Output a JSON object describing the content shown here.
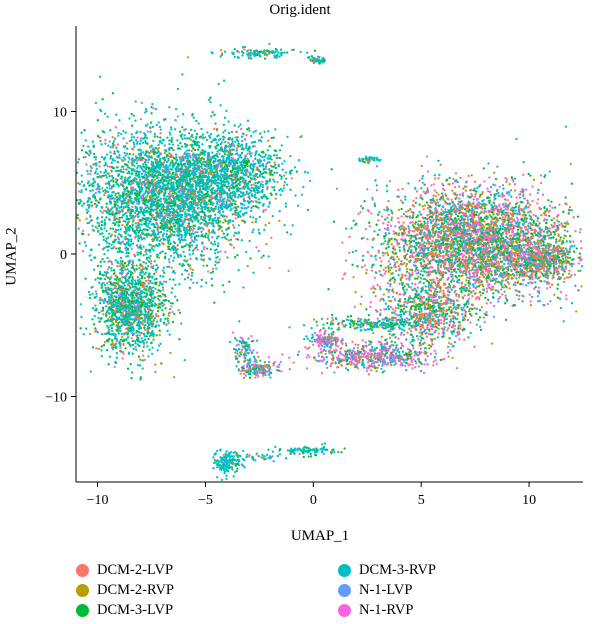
{
  "chart_data": {
    "type": "scatter",
    "title": "Orig.ident",
    "xlabel": "UMAP_1",
    "ylabel": "UMAP_2",
    "xlim": [
      -11,
      12.5
    ],
    "ylim": [
      -16,
      16
    ],
    "x_ticks": [
      -10,
      -5,
      0,
      5,
      10
    ],
    "x_tick_labels": [
      "−10",
      "−5",
      "0",
      "5",
      "10"
    ],
    "y_ticks": [
      -10,
      0,
      10
    ],
    "y_tick_labels": [
      "−10",
      "0",
      "10"
    ],
    "grid": false,
    "legend_position": "bottom",
    "series": [
      {
        "name": "DCM-2-LVP",
        "color": "#F8766D"
      },
      {
        "name": "DCM-2-RVP",
        "color": "#B79F00"
      },
      {
        "name": "DCM-3-LVP",
        "color": "#00BA38"
      },
      {
        "name": "DCM-3-RVP",
        "color": "#00BFC4"
      },
      {
        "name": "N-1-LVP",
        "color": "#619CFF"
      },
      {
        "name": "N-1-RVP",
        "color": "#F564E3"
      }
    ],
    "clusters": [
      {
        "cx": -6.8,
        "cy": 4.0,
        "sx": 2.0,
        "sy": 2.4,
        "n": 3600,
        "weights": [
          0.08,
          0.06,
          0.18,
          0.62,
          0.03,
          0.03
        ]
      },
      {
        "cx": -8.5,
        "cy": -3.8,
        "sx": 0.8,
        "sy": 1.6,
        "n": 1300,
        "weights": [
          0.06,
          0.12,
          0.22,
          0.55,
          0.02,
          0.03
        ]
      },
      {
        "cx": -3.8,
        "cy": 5.8,
        "sx": 1.3,
        "sy": 1.2,
        "n": 900,
        "weights": [
          0.05,
          0.05,
          0.15,
          0.7,
          0.02,
          0.03
        ]
      },
      {
        "cx": 7.5,
        "cy": 0.8,
        "sx": 2.2,
        "sy": 1.9,
        "n": 3800,
        "weights": [
          0.2,
          0.15,
          0.2,
          0.2,
          0.08,
          0.17
        ]
      },
      {
        "cx": 10.6,
        "cy": -0.4,
        "sx": 0.7,
        "sy": 0.6,
        "n": 500,
        "weights": [
          0.2,
          0.15,
          0.2,
          0.2,
          0.08,
          0.17
        ]
      },
      {
        "cx": 5.3,
        "cy": -4.0,
        "sx": 1.1,
        "sy": 1.1,
        "n": 700,
        "weights": [
          0.18,
          0.14,
          0.2,
          0.28,
          0.06,
          0.14
        ]
      },
      {
        "cx": 2.8,
        "cy": -7.2,
        "sx": 1.4,
        "sy": 0.45,
        "n": 550,
        "weights": [
          0.1,
          0.08,
          0.12,
          0.18,
          0.12,
          0.4
        ]
      },
      {
        "cx": 0.6,
        "cy": -6.0,
        "sx": 0.4,
        "sy": 0.25,
        "n": 130,
        "weights": [
          0.1,
          0.05,
          0.1,
          0.15,
          0.15,
          0.45
        ]
      },
      {
        "cx": 2.8,
        "cy": -4.9,
        "sx": 1.3,
        "sy": 0.22,
        "n": 220,
        "weights": [
          0.08,
          0.05,
          0.2,
          0.6,
          0.02,
          0.05
        ]
      },
      {
        "cx": -2.5,
        "cy": -8.1,
        "sx": 0.45,
        "sy": 0.3,
        "n": 160,
        "weights": [
          0.12,
          0.08,
          0.15,
          0.25,
          0.1,
          0.3
        ]
      },
      {
        "cx": -3.2,
        "cy": -6.8,
        "sx": 0.25,
        "sy": 0.6,
        "n": 90,
        "weights": [
          0.12,
          0.08,
          0.15,
          0.35,
          0.1,
          0.2
        ]
      },
      {
        "cx": -4.0,
        "cy": -14.6,
        "sx": 0.3,
        "sy": 0.45,
        "n": 150,
        "weights": [
          0.03,
          0.02,
          0.1,
          0.83,
          0.01,
          0.01
        ]
      },
      {
        "cx": -2.4,
        "cy": -14.3,
        "sx": 0.6,
        "sy": 0.12,
        "n": 35,
        "weights": [
          0.03,
          0.02,
          0.1,
          0.83,
          0.01,
          0.01
        ]
      },
      {
        "cx": -0.3,
        "cy": -13.8,
        "sx": 0.7,
        "sy": 0.15,
        "n": 90,
        "weights": [
          0.03,
          0.02,
          0.1,
          0.83,
          0.01,
          0.01
        ]
      },
      {
        "cx": -2.4,
        "cy": 14.1,
        "sx": 1.0,
        "sy": 0.18,
        "n": 110,
        "weights": [
          0.05,
          0.05,
          0.2,
          0.65,
          0.02,
          0.03
        ]
      },
      {
        "cx": 0.2,
        "cy": 13.6,
        "sx": 0.2,
        "sy": 0.12,
        "n": 45,
        "weights": [
          0.05,
          0.05,
          0.2,
          0.65,
          0.02,
          0.03
        ]
      },
      {
        "cx": 2.5,
        "cy": 6.6,
        "sx": 0.3,
        "sy": 0.1,
        "n": 40,
        "weights": [
          0.05,
          0.05,
          0.2,
          0.6,
          0.05,
          0.05
        ]
      }
    ]
  }
}
